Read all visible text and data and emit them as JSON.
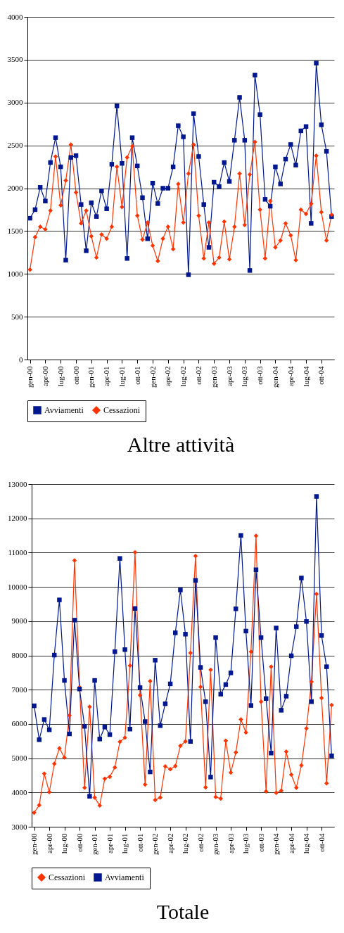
{
  "chart_data": [
    {
      "type": "line",
      "title": "Altre attività",
      "categories": [
        "gen-00",
        null,
        null,
        "apr-00",
        null,
        null,
        "lug-00",
        null,
        null,
        "ott-00",
        null,
        null,
        "gen-01",
        null,
        null,
        "apr-01",
        null,
        null,
        "lug-01",
        null,
        null,
        "ott-01",
        null,
        null,
        "gen-02",
        null,
        null,
        "apr-02",
        null,
        null,
        "lug-02",
        null,
        null,
        "ott-02",
        null,
        null,
        "gen-03",
        null,
        null,
        "apr-03",
        null,
        null,
        "lug-03",
        null,
        null,
        "ott-03",
        null,
        null,
        "gen-04",
        null,
        null,
        "apr-04",
        null,
        null,
        "lug-04",
        null,
        null,
        "ott-04",
        null,
        null
      ],
      "series": [
        {
          "name": "Avviamenti",
          "color": "#00178f",
          "marker": "square",
          "values": [
            1650,
            1750,
            2010,
            1850,
            2300,
            2590,
            2250,
            1160,
            2360,
            2380,
            1810,
            1270,
            1830,
            1670,
            1970,
            1760,
            2280,
            2960,
            2290,
            1180,
            2590,
            2260,
            1890,
            1410,
            2060,
            1820,
            2000,
            2000,
            2250,
            2730,
            2600,
            990,
            2870,
            2370,
            1810,
            1310,
            2070,
            2020,
            2300,
            2080,
            2560,
            3060,
            2560,
            1040,
            3320,
            2860,
            1870,
            1790,
            2250,
            2050,
            2340,
            2510,
            2270,
            2670,
            2720,
            1590,
            3460,
            2740,
            2430,
            1670
          ]
        },
        {
          "name": "Cessazioni",
          "color": "#ff3300",
          "marker": "diamond",
          "values": [
            1050,
            1430,
            1550,
            1520,
            1740,
            2370,
            1800,
            2090,
            2510,
            1950,
            1590,
            1740,
            1440,
            1190,
            1460,
            1410,
            1550,
            2250,
            1780,
            2360,
            2490,
            1680,
            1400,
            1600,
            1330,
            1150,
            1410,
            1550,
            1290,
            2050,
            1600,
            2170,
            2510,
            1680,
            1180,
            1600,
            1120,
            1190,
            1610,
            1170,
            1550,
            2170,
            1570,
            2160,
            2540,
            1750,
            1180,
            1850,
            1310,
            1390,
            1590,
            1450,
            1160,
            1750,
            1700,
            1820,
            2380,
            1720,
            1390,
            1690
          ]
        }
      ],
      "ylim": [
        0,
        4000
      ],
      "yticks": [
        0,
        500,
        1000,
        1500,
        2000,
        2500,
        3000,
        3500,
        4000
      ],
      "grid": "y",
      "legend": "bottom"
    },
    {
      "type": "line",
      "title": "Totale",
      "categories": [
        "gen-00",
        null,
        null,
        "apr-00",
        null,
        null,
        "lug-00",
        null,
        null,
        "ott-00",
        null,
        null,
        "gen-01",
        null,
        null,
        "apr-01",
        null,
        null,
        "lug-01",
        null,
        null,
        "ott-01",
        null,
        null,
        "gen-02",
        null,
        null,
        "apr-02",
        null,
        null,
        "lug-02",
        null,
        null,
        "ott-02",
        null,
        null,
        "gen-03",
        null,
        null,
        "apr-03",
        null,
        null,
        "lug-03",
        null,
        null,
        "ott-03",
        null,
        null,
        "gen-04",
        null,
        null,
        "apr-04",
        null,
        null,
        "lug-04",
        null,
        null,
        "ott-04",
        null,
        null
      ],
      "series": [
        {
          "name": "Cessazioni",
          "color": "#ff3300",
          "marker": "diamond",
          "values": [
            3410,
            3630,
            4550,
            4010,
            4840,
            5290,
            5020,
            6250,
            10770,
            7070,
            4140,
            6500,
            3850,
            3620,
            4400,
            4460,
            4730,
            5480,
            5600,
            7700,
            11010,
            6840,
            4230,
            7250,
            3780,
            3850,
            4760,
            4680,
            4770,
            5360,
            5490,
            8070,
            10900,
            7080,
            4150,
            7580,
            3870,
            3820,
            5510,
            4580,
            5170,
            6130,
            5750,
            8110,
            11490,
            6650,
            4030,
            7670,
            3990,
            4050,
            5190,
            4520,
            4140,
            4790,
            5870,
            7230,
            9790,
            6760,
            4270,
            6550
          ]
        },
        {
          "name": "Avviamenti",
          "color": "#00178f",
          "marker": "square",
          "values": [
            6530,
            5540,
            6130,
            5830,
            8010,
            9620,
            7270,
            5710,
            9030,
            7020,
            5930,
            3890,
            7270,
            5560,
            5910,
            5690,
            8110,
            10830,
            8170,
            5850,
            9370,
            7060,
            6070,
            4600,
            7860,
            5950,
            6590,
            7170,
            8660,
            9910,
            8620,
            5490,
            10190,
            7650,
            6650,
            4450,
            8520,
            6870,
            7150,
            7490,
            9360,
            11500,
            8710,
            6540,
            10500,
            8520,
            6740,
            5150,
            8800,
            6400,
            6810,
            7990,
            8840,
            10260,
            8990,
            6650,
            12640,
            8580,
            7670,
            5070
          ]
        }
      ],
      "ylim": [
        3000,
        13000
      ],
      "yticks": [
        3000,
        4000,
        5000,
        6000,
        7000,
        8000,
        9000,
        10000,
        11000,
        12000,
        13000
      ],
      "grid": "y",
      "legend": "bottom"
    }
  ]
}
